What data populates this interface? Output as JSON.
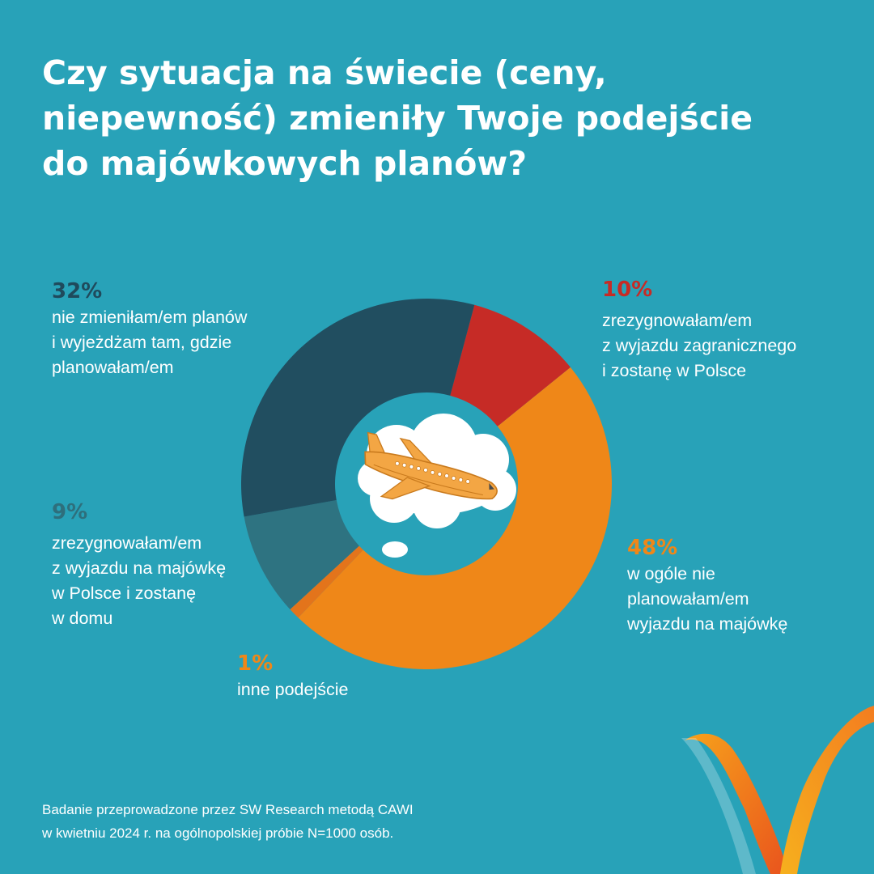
{
  "title": {
    "lines": [
      "Czy sytuacja na świecie (ceny,",
      "niepewność) zmieniły Twoje podejście",
      "do majówkowych planów?"
    ]
  },
  "chart_data": {
    "type": "pie",
    "style": "donut",
    "title": "Czy sytuacja na świecie (ceny, niepewność) zmieniły Twoje podejście do majówkowych planów?",
    "slices": [
      {
        "value": 10,
        "label": "10%",
        "description": "zrezygnowałam/em z wyjazdu zagranicznego i zostanę w Polsce",
        "color": "#c62b26"
      },
      {
        "value": 48,
        "label": "48%",
        "description": "w ogóle nie planowałam/em wyjazdu na majówkę",
        "color": "#ef8718"
      },
      {
        "value": 1,
        "label": "1%",
        "description": "inne podejście",
        "color": "#e3741b"
      },
      {
        "value": 9,
        "label": "9%",
        "description": "zrezygnowałam/em z wyjazdu na majówkę w Polsce i zostanę w domu",
        "color": "#2e7381"
      },
      {
        "value": 32,
        "label": "32%",
        "description": "nie zmieniłam/em planów i wyjeżdżam tam, gdzie planowałam/em",
        "color": "#214e60"
      }
    ]
  },
  "labels": {
    "slice32": {
      "pct": "32%",
      "lines": [
        "nie zmieniłam/em planów",
        "i wyjeżdżam tam, gdzie",
        "planowałam/em"
      ],
      "color": "#1f4a5c"
    },
    "slice10": {
      "pct": "10%",
      "lines": [
        "zrezygnowałam/em",
        "z wyjazdu zagranicznego",
        "i zostanę w Polsce"
      ],
      "color": "#c62b26"
    },
    "slice9": {
      "pct": "9%",
      "lines": [
        "zrezygnowałam/em",
        "z wyjazdu na majówkę",
        "w Polsce i zostanę",
        "w domu"
      ],
      "color": "#2e6f7c"
    },
    "slice48": {
      "pct": "48%",
      "lines": [
        "w ogóle nie",
        "planowałam/em",
        "wyjazdu na majówkę"
      ],
      "color": "#ef8718"
    },
    "slice1": {
      "pct": "1%",
      "lines": [
        "inne podejście"
      ],
      "color": "#ef8718"
    }
  },
  "footnote": {
    "lines": [
      "Badanie przeprowadzone przez SW Research metodą CAWI",
      "w kwietniu 2024 r. na ogólnopolskiej próbie N=1000 osób."
    ]
  },
  "icons": {
    "center": "airplane-in-thought-cloud-icon",
    "brand": "orange-ribbon-logo"
  }
}
